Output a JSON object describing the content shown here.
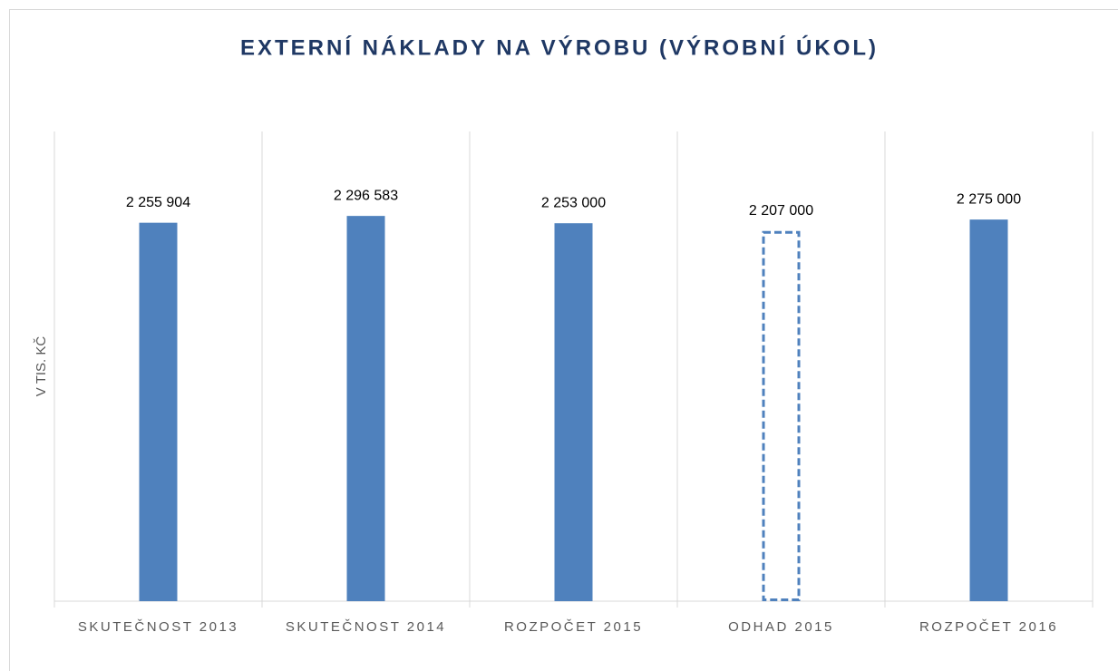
{
  "chart_data": {
    "type": "bar",
    "title": "EXTERNÍ NÁKLADY NA VÝROBU (VÝROBNÍ ÚKOL)",
    "y_label": "V TIS. KČ",
    "categories": [
      "SKUTEČNOST 2013",
      "SKUTEČNOST 2014",
      "ROZPOČET 2015",
      "ODHAD 2015",
      "ROZPOČET 2016"
    ],
    "values": [
      2255904,
      2296583,
      2253000,
      2207000,
      2275000
    ],
    "value_labels": [
      "2 255 904",
      "2 296 583",
      "2 253 000",
      "2 207 000",
      "2 275 000"
    ],
    "bar_styles": [
      "solid",
      "solid",
      "solid",
      "dashed",
      "solid"
    ],
    "color": "#4f81bd",
    "ylim": [
      0,
      2800000
    ]
  }
}
